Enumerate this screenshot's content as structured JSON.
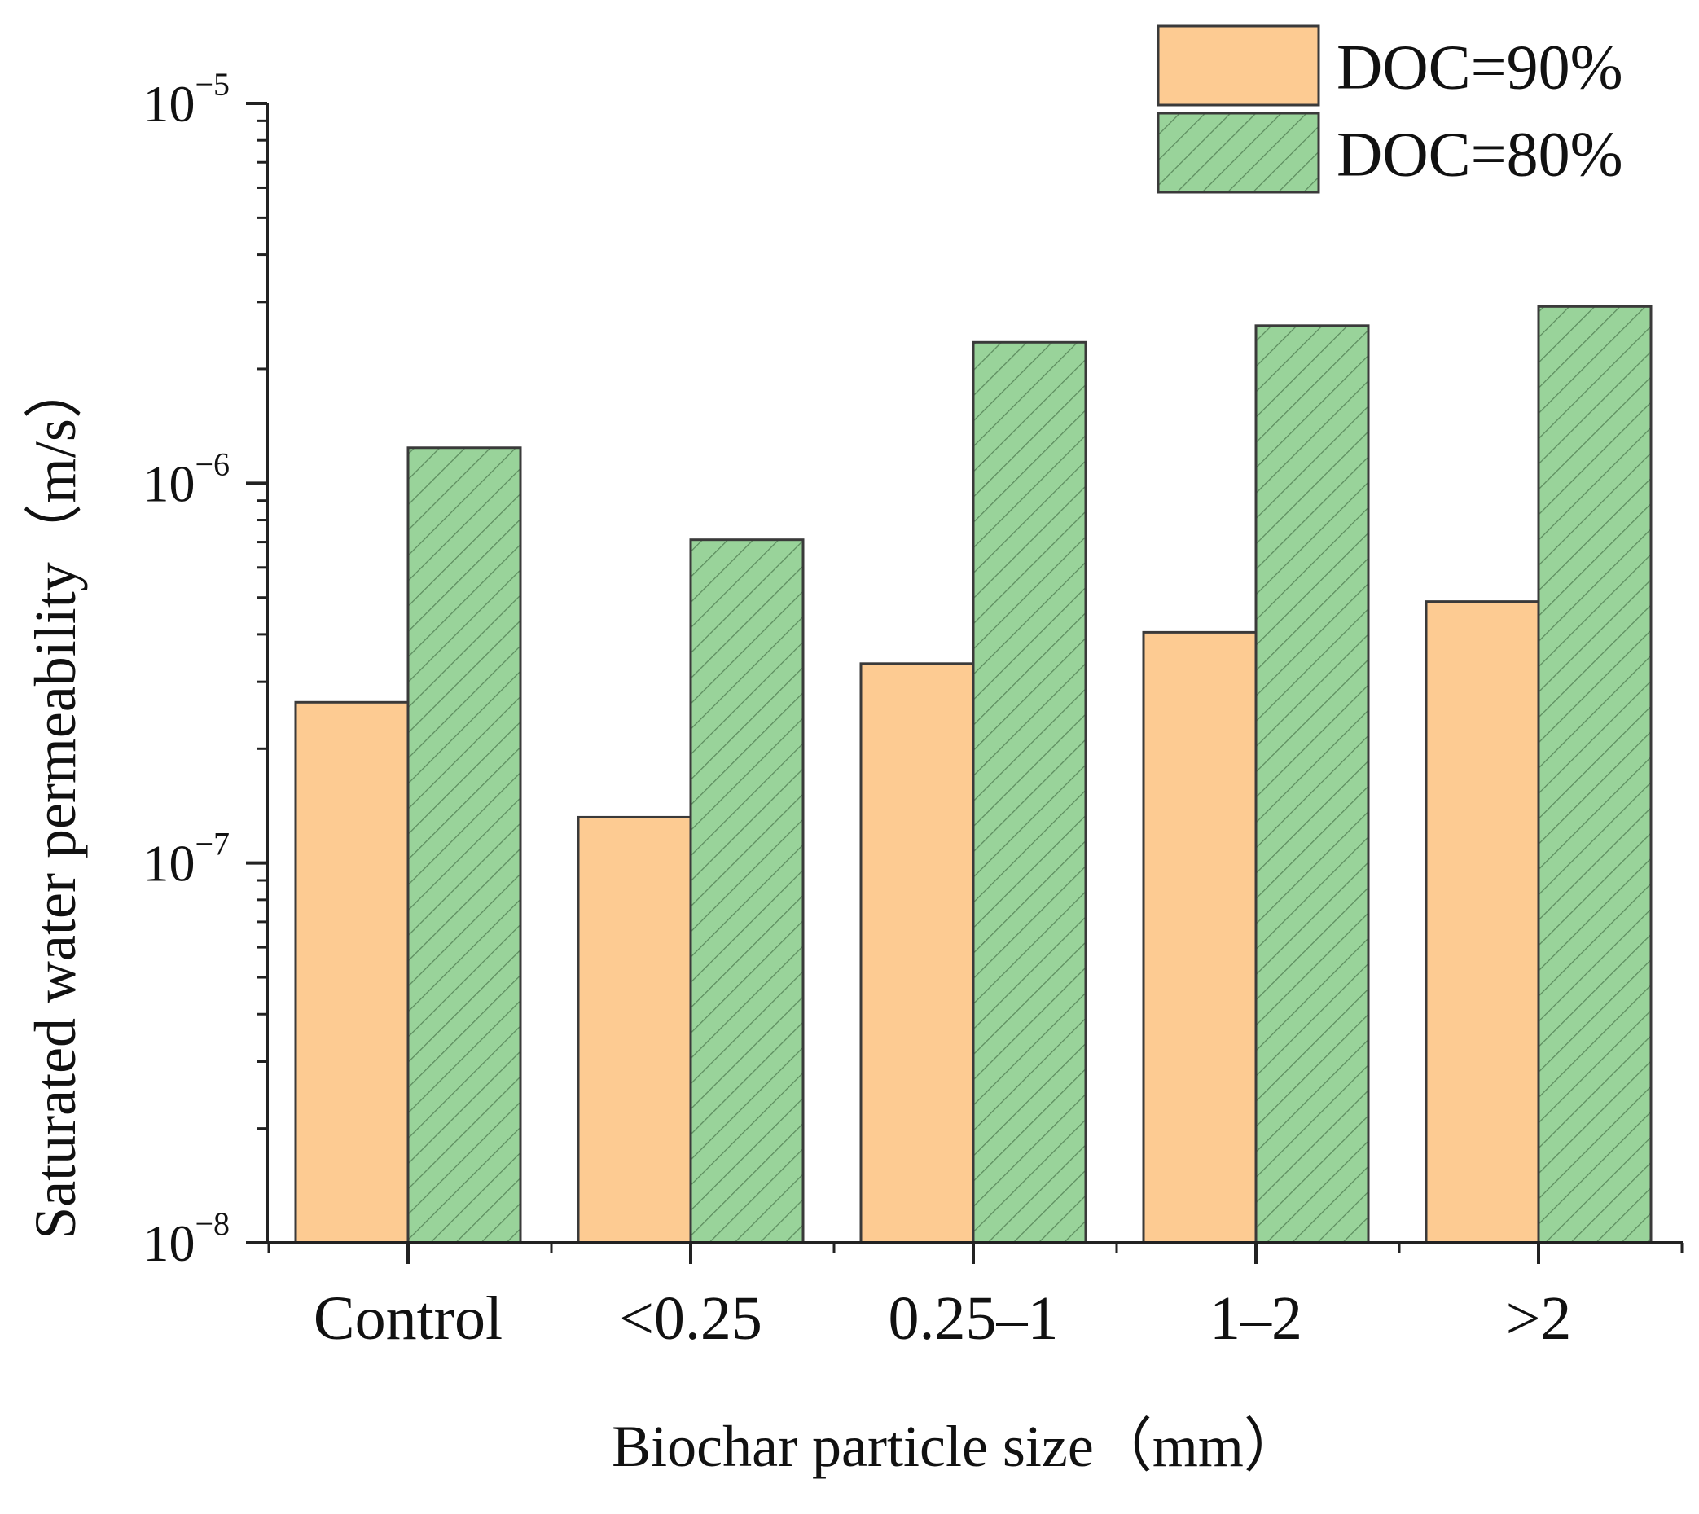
{
  "chart_data": {
    "type": "bar",
    "scale": "log",
    "categories": [
      "Control",
      "<0.25",
      "0.25–1",
      "1–2",
      ">2"
    ],
    "series": [
      {
        "name": "DOC=90%",
        "color": "#fdcb92",
        "pattern": "none",
        "values": [
          2.65e-07,
          1.32e-07,
          3.35e-07,
          4.05e-07,
          4.88e-07
        ]
      },
      {
        "name": "DOC=80%",
        "color": "#99d39a",
        "pattern": "hatch",
        "values": [
          1.24e-06,
          7.1e-07,
          2.35e-06,
          2.6e-06,
          2.92e-06
        ]
      }
    ],
    "y_ticks": [
      {
        "value": 1e-08,
        "base": "10",
        "exp": "−8"
      },
      {
        "value": 1e-07,
        "base": "10",
        "exp": "−7"
      },
      {
        "value": 1e-06,
        "base": "10",
        "exp": "−6"
      },
      {
        "value": 1e-05,
        "base": "10",
        "exp": "−5"
      }
    ],
    "ylim": [
      1e-08,
      1e-05
    ],
    "xlabel": "Biochar particle size（mm）",
    "ylabel": "Saturated water permeability（m/s）",
    "legend_position": "top-right",
    "grid": false
  }
}
